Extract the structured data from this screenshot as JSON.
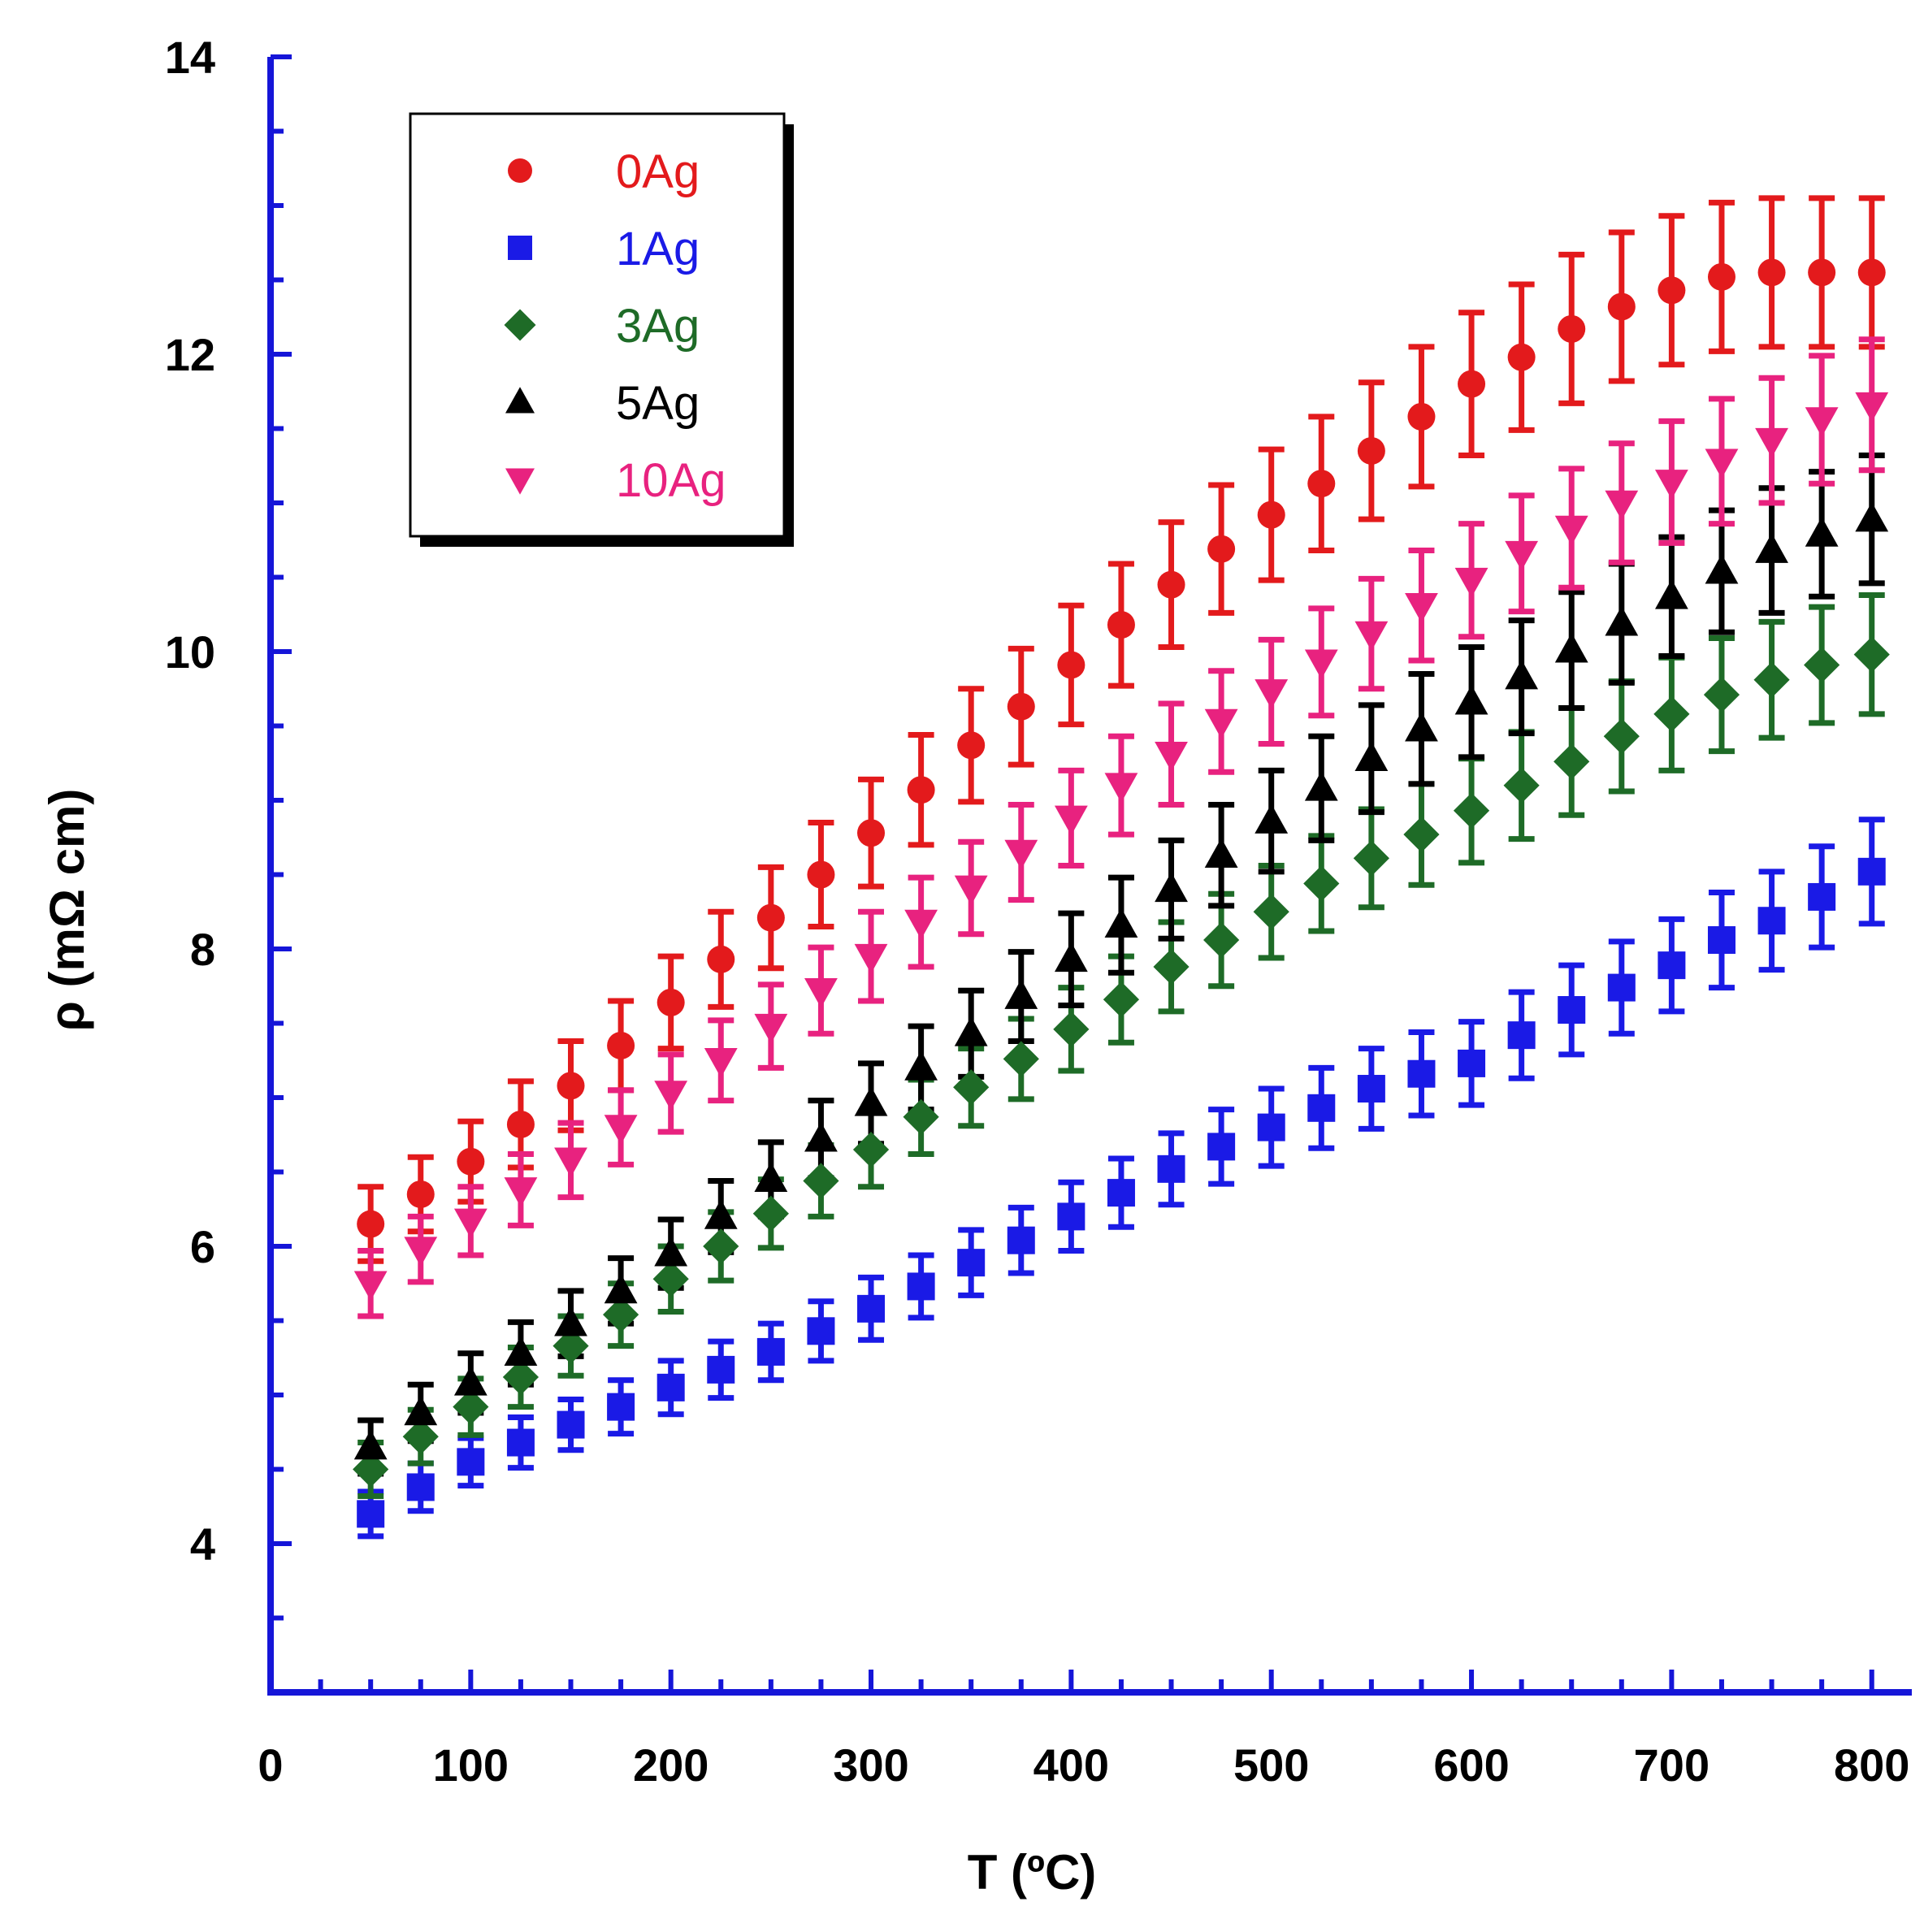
{
  "chart_data": {
    "type": "scatter",
    "title": "",
    "xlabel": "T (ºC)",
    "ylabel": "ρ (mΩ cm)",
    "xlim": [
      0,
      820
    ],
    "ylim": [
      3,
      14
    ],
    "xticks": [
      "0",
      "100",
      "200",
      "300",
      "400",
      "500",
      "600",
      "700",
      "800"
    ],
    "yticks": [
      "4",
      "6",
      "8",
      "10",
      "12",
      "14"
    ],
    "legend_position": "top-left",
    "x": [
      50,
      75,
      100,
      125,
      150,
      175,
      200,
      225,
      250,
      275,
      300,
      325,
      350,
      375,
      400,
      425,
      450,
      475,
      500,
      525,
      550,
      575,
      600,
      625,
      650,
      675,
      700,
      725,
      750,
      775,
      800
    ],
    "series": [
      {
        "name": "0Ag",
        "color": "#e31a1c",
        "marker": "circle",
        "values": [
          6.15,
          6.35,
          6.57,
          6.82,
          7.08,
          7.35,
          7.64,
          7.93,
          8.21,
          8.5,
          8.78,
          9.07,
          9.37,
          9.63,
          9.91,
          10.18,
          10.45,
          10.69,
          10.92,
          11.13,
          11.35,
          11.58,
          11.8,
          11.98,
          12.17,
          12.32,
          12.43,
          12.52,
          12.55,
          12.55,
          12.55
        ],
        "errors": [
          0.25,
          0.25,
          0.27,
          0.29,
          0.3,
          0.3,
          0.31,
          0.32,
          0.34,
          0.35,
          0.36,
          0.37,
          0.38,
          0.39,
          0.4,
          0.41,
          0.42,
          0.43,
          0.44,
          0.45,
          0.46,
          0.47,
          0.48,
          0.49,
          0.5,
          0.5,
          0.5,
          0.5,
          0.5,
          0.5,
          0.5
        ]
      },
      {
        "name": "1Ag",
        "color": "#1a1ae6",
        "marker": "square",
        "values": [
          4.2,
          4.38,
          4.55,
          4.68,
          4.8,
          4.92,
          5.05,
          5.17,
          5.29,
          5.43,
          5.58,
          5.73,
          5.89,
          6.04,
          6.2,
          6.36,
          6.52,
          6.67,
          6.8,
          6.93,
          7.06,
          7.16,
          7.23,
          7.42,
          7.59,
          7.74,
          7.89,
          8.06,
          8.19,
          8.35,
          8.52
        ],
        "errors": [
          0.15,
          0.16,
          0.16,
          0.17,
          0.17,
          0.18,
          0.18,
          0.19,
          0.19,
          0.2,
          0.21,
          0.21,
          0.22,
          0.22,
          0.23,
          0.23,
          0.24,
          0.25,
          0.26,
          0.27,
          0.27,
          0.28,
          0.28,
          0.29,
          0.3,
          0.31,
          0.31,
          0.32,
          0.33,
          0.34,
          0.35
        ]
      },
      {
        "name": "3Ag",
        "color": "#1e6b27",
        "marker": "diamond",
        "values": [
          4.5,
          4.72,
          4.92,
          5.12,
          5.33,
          5.54,
          5.78,
          6.0,
          6.22,
          6.44,
          6.65,
          6.87,
          7.07,
          7.26,
          7.46,
          7.66,
          7.88,
          8.06,
          8.25,
          8.44,
          8.61,
          8.77,
          8.93,
          9.1,
          9.26,
          9.43,
          9.58,
          9.71,
          9.81,
          9.91,
          9.98
        ],
        "errors": [
          0.18,
          0.18,
          0.19,
          0.2,
          0.2,
          0.21,
          0.22,
          0.23,
          0.23,
          0.24,
          0.25,
          0.25,
          0.26,
          0.27,
          0.28,
          0.29,
          0.3,
          0.31,
          0.31,
          0.32,
          0.33,
          0.34,
          0.35,
          0.36,
          0.36,
          0.37,
          0.38,
          0.38,
          0.39,
          0.39,
          0.4
        ]
      },
      {
        "name": "5Ag",
        "color": "#000000",
        "marker": "triangle-up",
        "values": [
          4.65,
          4.88,
          5.08,
          5.28,
          5.48,
          5.7,
          5.95,
          6.2,
          6.45,
          6.72,
          6.96,
          7.2,
          7.43,
          7.68,
          7.93,
          8.16,
          8.4,
          8.63,
          8.86,
          9.08,
          9.28,
          9.48,
          9.66,
          9.83,
          10.01,
          10.19,
          10.37,
          10.54,
          10.68,
          10.79,
          10.89
        ],
        "errors": [
          0.18,
          0.19,
          0.2,
          0.21,
          0.22,
          0.22,
          0.23,
          0.24,
          0.25,
          0.26,
          0.27,
          0.28,
          0.29,
          0.3,
          0.31,
          0.32,
          0.33,
          0.34,
          0.34,
          0.35,
          0.36,
          0.37,
          0.37,
          0.38,
          0.39,
          0.4,
          0.4,
          0.41,
          0.42,
          0.42,
          0.43
        ]
      },
      {
        "name": "10Ag",
        "color": "#e8227f",
        "marker": "triangle-down",
        "values": [
          5.75,
          5.98,
          6.17,
          6.38,
          6.58,
          6.8,
          7.03,
          7.25,
          7.48,
          7.72,
          7.95,
          8.18,
          8.41,
          8.65,
          8.88,
          9.1,
          9.31,
          9.53,
          9.73,
          9.93,
          10.12,
          10.31,
          10.48,
          10.66,
          10.83,
          11.0,
          11.14,
          11.28,
          11.42,
          11.56,
          11.66
        ],
        "errors": [
          0.22,
          0.22,
          0.23,
          0.24,
          0.25,
          0.25,
          0.26,
          0.27,
          0.28,
          0.29,
          0.3,
          0.3,
          0.31,
          0.32,
          0.32,
          0.33,
          0.34,
          0.34,
          0.35,
          0.36,
          0.37,
          0.37,
          0.38,
          0.39,
          0.4,
          0.4,
          0.41,
          0.42,
          0.42,
          0.43,
          0.44
        ]
      }
    ]
  }
}
